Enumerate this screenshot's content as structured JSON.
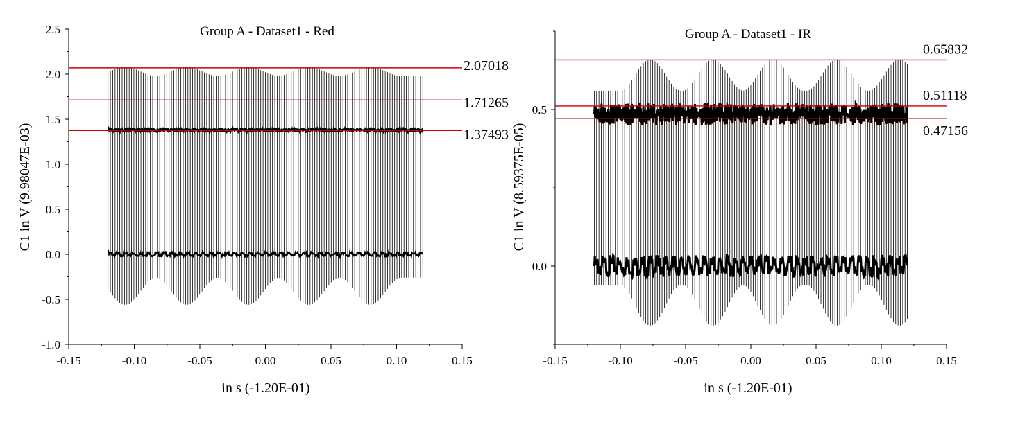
{
  "chart_data": [
    {
      "type": "line",
      "title": "Group A - Dataset1 - Red",
      "xlabel": "in s (-1.20E-01)",
      "ylabel": "C1 in V (9.98047E-03)",
      "xlim": [
        -0.15,
        0.15
      ],
      "ylim": [
        -1.0,
        2.5
      ],
      "x_ticks": [
        "-0.15",
        "-0.10",
        "-0.05",
        "0.00",
        "0.05",
        "0.10",
        "0.15"
      ],
      "y_ticks": [
        "-1.0",
        "-0.5",
        "0.0",
        "0.5",
        "1.0",
        "1.5",
        "2.0",
        "2.5"
      ],
      "reference_lines": [
        {
          "value": 2.07018,
          "label": "2.07018"
        },
        {
          "value": 1.71265,
          "label": "1.71265"
        },
        {
          "value": 1.37493,
          "label": "1.37493"
        }
      ],
      "signal": {
        "x_range": [
          -0.12,
          0.12
        ],
        "pulse_count": 135,
        "baseline": 0.0,
        "plateau": 1.38,
        "envelope_max": [
          1.98,
          2.08
        ],
        "envelope_min": [
          -0.26,
          -0.56
        ],
        "envelope_peak_x": [
          -0.107,
          -0.06,
          -0.013,
          0.033,
          0.08
        ]
      },
      "line_color": "#cc0000",
      "trace_color": "#000000"
    },
    {
      "type": "line",
      "title": "Group A - Dataset1 - IR",
      "xlabel": "in s (-1.20E-01)",
      "ylabel": "C1 in V (8.59375E-05)",
      "xlim": [
        -0.15,
        0.15
      ],
      "ylim": [
        -0.25,
        0.75
      ],
      "x_ticks": [
        "-0.15",
        "-0.10",
        "-0.05",
        "0.00",
        "0.05",
        "0.10",
        "0.15"
      ],
      "y_ticks": [
        "0.0",
        "0.5"
      ],
      "reference_lines": [
        {
          "value": 0.65832,
          "label": "0.65832"
        },
        {
          "value": 0.51118,
          "label": "0.51118"
        },
        {
          "value": 0.47156,
          "label": "0.47156"
        }
      ],
      "signal": {
        "x_range": [
          -0.12,
          0.12
        ],
        "pulse_count": 135,
        "baseline": 0.0,
        "plateau": 0.485,
        "envelope_max": [
          0.56,
          0.66
        ],
        "envelope_min": [
          -0.06,
          -0.19
        ],
        "envelope_peak_x": [
          -0.077,
          -0.029,
          0.017,
          0.066,
          0.114
        ]
      },
      "line_color": "#cc0000",
      "trace_color": "#000000"
    }
  ]
}
